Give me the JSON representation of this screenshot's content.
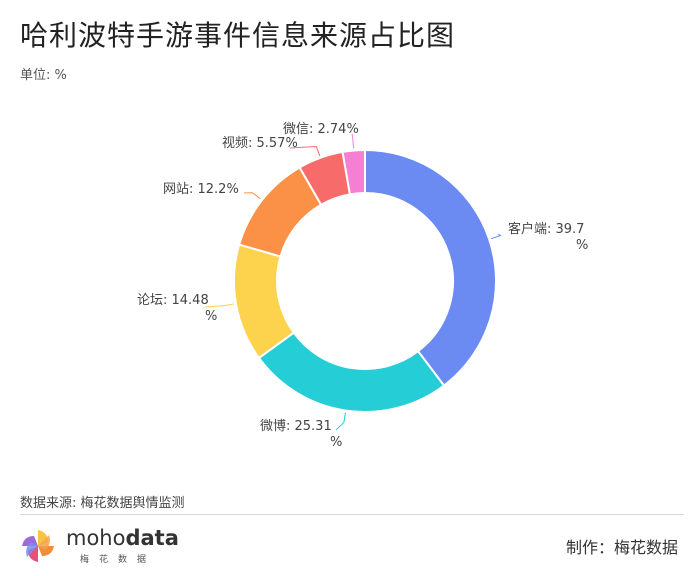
{
  "header": {
    "title": "哈利波特手游事件信息来源占比图",
    "unit": "单位: %"
  },
  "footer": {
    "source": "数据来源: 梅花数据舆情监测",
    "logo_brand_light": "moho",
    "logo_brand_bold": "data",
    "logo_sub": "梅花数据",
    "credit": "制作：梅花数据"
  },
  "chart_data": {
    "type": "pie",
    "variant": "donut",
    "unit": "%",
    "slices": [
      {
        "label": "客户端",
        "value": 39.7,
        "color": "#6b8af2",
        "display": [
          "客户端: 39.7",
          "%"
        ]
      },
      {
        "label": "微博",
        "value": 25.31,
        "color": "#25cdd6",
        "display": [
          "微博: 25.31",
          "%"
        ]
      },
      {
        "label": "论坛",
        "value": 14.48,
        "color": "#fdd24c",
        "display": [
          "论坛: 14.48",
          "%"
        ]
      },
      {
        "label": "网站",
        "value": 12.2,
        "color": "#fb9147",
        "display": [
          "网站: 12.2%"
        ]
      },
      {
        "label": "视频",
        "value": 5.57,
        "color": "#f76b6b",
        "display": [
          "视频: 5.57%"
        ]
      },
      {
        "label": "微信",
        "value": 2.74,
        "color": "#f47fd3",
        "display": [
          "微信: 2.74%"
        ]
      }
    ],
    "legend": "none"
  }
}
